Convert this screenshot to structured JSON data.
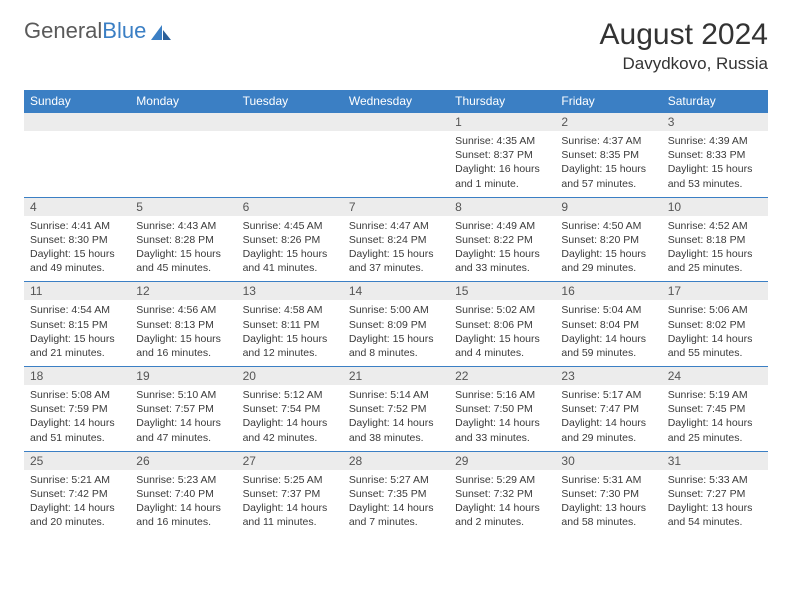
{
  "brand": {
    "part1": "General",
    "part2": "Blue"
  },
  "title": "August 2024",
  "location": "Davydkovo, Russia",
  "colors": {
    "header_bg": "#3b7fc4",
    "header_text": "#ffffff",
    "daynum_bg": "#ececec",
    "daynum_text": "#555555",
    "body_text": "#3a3a3a",
    "rule": "#3b7fc4"
  },
  "day_names": [
    "Sunday",
    "Monday",
    "Tuesday",
    "Wednesday",
    "Thursday",
    "Friday",
    "Saturday"
  ],
  "weeks": [
    [
      null,
      null,
      null,
      null,
      {
        "n": "1",
        "sr": "Sunrise: 4:35 AM",
        "ss": "Sunset: 8:37 PM",
        "dl": "Daylight: 16 hours and 1 minute."
      },
      {
        "n": "2",
        "sr": "Sunrise: 4:37 AM",
        "ss": "Sunset: 8:35 PM",
        "dl": "Daylight: 15 hours and 57 minutes."
      },
      {
        "n": "3",
        "sr": "Sunrise: 4:39 AM",
        "ss": "Sunset: 8:33 PM",
        "dl": "Daylight: 15 hours and 53 minutes."
      }
    ],
    [
      {
        "n": "4",
        "sr": "Sunrise: 4:41 AM",
        "ss": "Sunset: 8:30 PM",
        "dl": "Daylight: 15 hours and 49 minutes."
      },
      {
        "n": "5",
        "sr": "Sunrise: 4:43 AM",
        "ss": "Sunset: 8:28 PM",
        "dl": "Daylight: 15 hours and 45 minutes."
      },
      {
        "n": "6",
        "sr": "Sunrise: 4:45 AM",
        "ss": "Sunset: 8:26 PM",
        "dl": "Daylight: 15 hours and 41 minutes."
      },
      {
        "n": "7",
        "sr": "Sunrise: 4:47 AM",
        "ss": "Sunset: 8:24 PM",
        "dl": "Daylight: 15 hours and 37 minutes."
      },
      {
        "n": "8",
        "sr": "Sunrise: 4:49 AM",
        "ss": "Sunset: 8:22 PM",
        "dl": "Daylight: 15 hours and 33 minutes."
      },
      {
        "n": "9",
        "sr": "Sunrise: 4:50 AM",
        "ss": "Sunset: 8:20 PM",
        "dl": "Daylight: 15 hours and 29 minutes."
      },
      {
        "n": "10",
        "sr": "Sunrise: 4:52 AM",
        "ss": "Sunset: 8:18 PM",
        "dl": "Daylight: 15 hours and 25 minutes."
      }
    ],
    [
      {
        "n": "11",
        "sr": "Sunrise: 4:54 AM",
        "ss": "Sunset: 8:15 PM",
        "dl": "Daylight: 15 hours and 21 minutes."
      },
      {
        "n": "12",
        "sr": "Sunrise: 4:56 AM",
        "ss": "Sunset: 8:13 PM",
        "dl": "Daylight: 15 hours and 16 minutes."
      },
      {
        "n": "13",
        "sr": "Sunrise: 4:58 AM",
        "ss": "Sunset: 8:11 PM",
        "dl": "Daylight: 15 hours and 12 minutes."
      },
      {
        "n": "14",
        "sr": "Sunrise: 5:00 AM",
        "ss": "Sunset: 8:09 PM",
        "dl": "Daylight: 15 hours and 8 minutes."
      },
      {
        "n": "15",
        "sr": "Sunrise: 5:02 AM",
        "ss": "Sunset: 8:06 PM",
        "dl": "Daylight: 15 hours and 4 minutes."
      },
      {
        "n": "16",
        "sr": "Sunrise: 5:04 AM",
        "ss": "Sunset: 8:04 PM",
        "dl": "Daylight: 14 hours and 59 minutes."
      },
      {
        "n": "17",
        "sr": "Sunrise: 5:06 AM",
        "ss": "Sunset: 8:02 PM",
        "dl": "Daylight: 14 hours and 55 minutes."
      }
    ],
    [
      {
        "n": "18",
        "sr": "Sunrise: 5:08 AM",
        "ss": "Sunset: 7:59 PM",
        "dl": "Daylight: 14 hours and 51 minutes."
      },
      {
        "n": "19",
        "sr": "Sunrise: 5:10 AM",
        "ss": "Sunset: 7:57 PM",
        "dl": "Daylight: 14 hours and 47 minutes."
      },
      {
        "n": "20",
        "sr": "Sunrise: 5:12 AM",
        "ss": "Sunset: 7:54 PM",
        "dl": "Daylight: 14 hours and 42 minutes."
      },
      {
        "n": "21",
        "sr": "Sunrise: 5:14 AM",
        "ss": "Sunset: 7:52 PM",
        "dl": "Daylight: 14 hours and 38 minutes."
      },
      {
        "n": "22",
        "sr": "Sunrise: 5:16 AM",
        "ss": "Sunset: 7:50 PM",
        "dl": "Daylight: 14 hours and 33 minutes."
      },
      {
        "n": "23",
        "sr": "Sunrise: 5:17 AM",
        "ss": "Sunset: 7:47 PM",
        "dl": "Daylight: 14 hours and 29 minutes."
      },
      {
        "n": "24",
        "sr": "Sunrise: 5:19 AM",
        "ss": "Sunset: 7:45 PM",
        "dl": "Daylight: 14 hours and 25 minutes."
      }
    ],
    [
      {
        "n": "25",
        "sr": "Sunrise: 5:21 AM",
        "ss": "Sunset: 7:42 PM",
        "dl": "Daylight: 14 hours and 20 minutes."
      },
      {
        "n": "26",
        "sr": "Sunrise: 5:23 AM",
        "ss": "Sunset: 7:40 PM",
        "dl": "Daylight: 14 hours and 16 minutes."
      },
      {
        "n": "27",
        "sr": "Sunrise: 5:25 AM",
        "ss": "Sunset: 7:37 PM",
        "dl": "Daylight: 14 hours and 11 minutes."
      },
      {
        "n": "28",
        "sr": "Sunrise: 5:27 AM",
        "ss": "Sunset: 7:35 PM",
        "dl": "Daylight: 14 hours and 7 minutes."
      },
      {
        "n": "29",
        "sr": "Sunrise: 5:29 AM",
        "ss": "Sunset: 7:32 PM",
        "dl": "Daylight: 14 hours and 2 minutes."
      },
      {
        "n": "30",
        "sr": "Sunrise: 5:31 AM",
        "ss": "Sunset: 7:30 PM",
        "dl": "Daylight: 13 hours and 58 minutes."
      },
      {
        "n": "31",
        "sr": "Sunrise: 5:33 AM",
        "ss": "Sunset: 7:27 PM",
        "dl": "Daylight: 13 hours and 54 minutes."
      }
    ]
  ]
}
